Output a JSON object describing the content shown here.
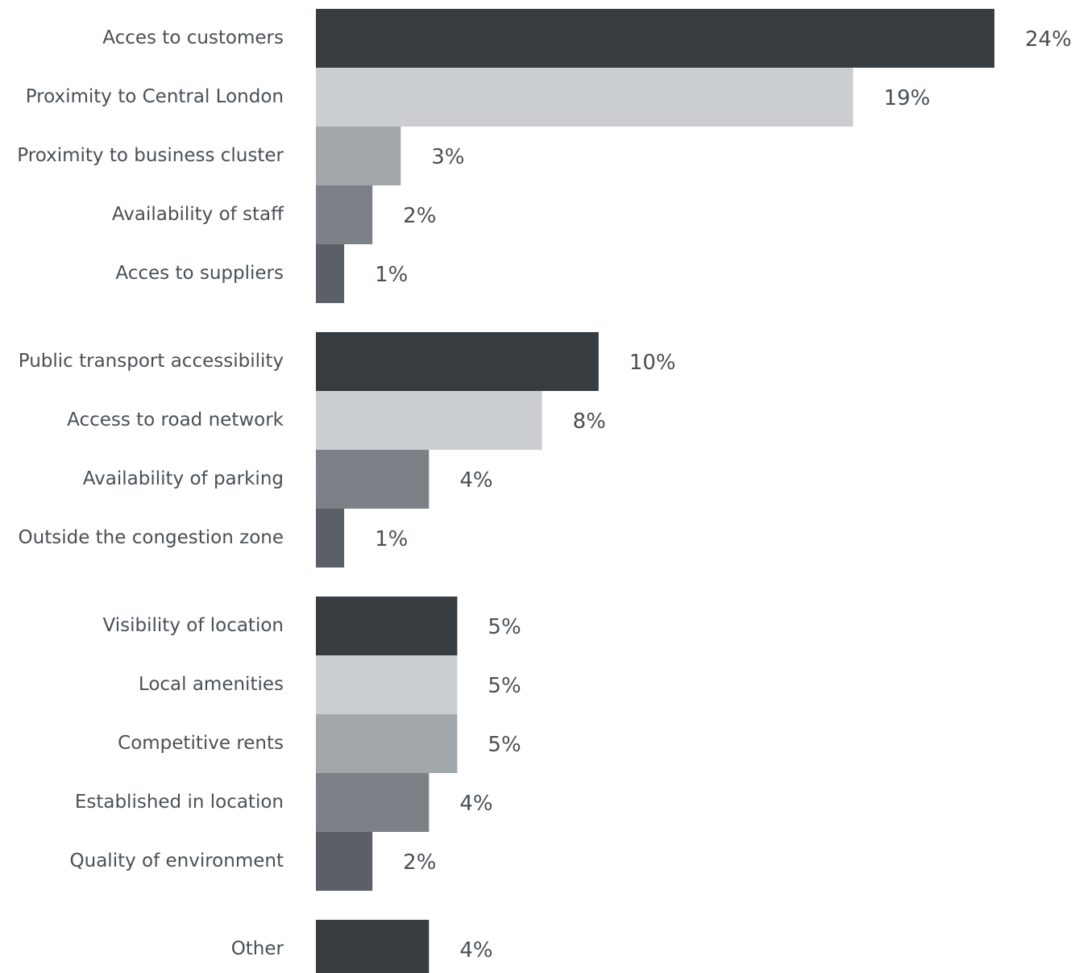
{
  "chart_data": {
    "type": "bar",
    "orientation": "horizontal",
    "xlim": [
      0,
      24
    ],
    "grid": false,
    "palette": [
      "#363c40",
      "#cbced1",
      "#a1a7aa",
      "#7b8187",
      "#5a6066"
    ],
    "groups": [
      {
        "items": [
          {
            "category": "Acces to customers",
            "value": 24,
            "label": "24%",
            "color": "#363c40"
          },
          {
            "category": "Proximity to Central London",
            "value": 19,
            "label": "19%",
            "color": "#cbced1"
          },
          {
            "category": "Proximity to business cluster",
            "value": 3,
            "label": "3%",
            "color": "#a1a7aa"
          },
          {
            "category": "Availability of staff",
            "value": 2,
            "label": "2%",
            "color": "#7b8187"
          },
          {
            "category": "Acces to suppliers",
            "value": 1,
            "label": "1%",
            "color": "#5a6066"
          }
        ]
      },
      {
        "items": [
          {
            "category": "Public transport accessibility",
            "value": 10,
            "label": "10%",
            "color": "#363c40"
          },
          {
            "category": "Access to road network",
            "value": 8,
            "label": "8%",
            "color": "#cbced1"
          },
          {
            "category": "Availability of parking",
            "value": 4,
            "label": "4%",
            "color": "#7b8187"
          },
          {
            "category": "Outside the congestion zone",
            "value": 1,
            "label": "1%",
            "color": "#5a6066"
          }
        ]
      },
      {
        "items": [
          {
            "category": "Visibility of location",
            "value": 5,
            "label": "5%",
            "color": "#363c40"
          },
          {
            "category": "Local amenities",
            "value": 5,
            "label": "5%",
            "color": "#cbced1"
          },
          {
            "category": "Competitive rents",
            "value": 5,
            "label": "5%",
            "color": "#a1a7aa"
          },
          {
            "category": "Established in location",
            "value": 4,
            "label": "4%",
            "color": "#7b8187"
          },
          {
            "category": "Quality of environment",
            "value": 2,
            "label": "2%",
            "color": "#5a6066"
          }
        ]
      },
      {
        "items": [
          {
            "category": "Other",
            "value": 4,
            "label": "4%",
            "color": "#363c40"
          }
        ]
      }
    ]
  }
}
